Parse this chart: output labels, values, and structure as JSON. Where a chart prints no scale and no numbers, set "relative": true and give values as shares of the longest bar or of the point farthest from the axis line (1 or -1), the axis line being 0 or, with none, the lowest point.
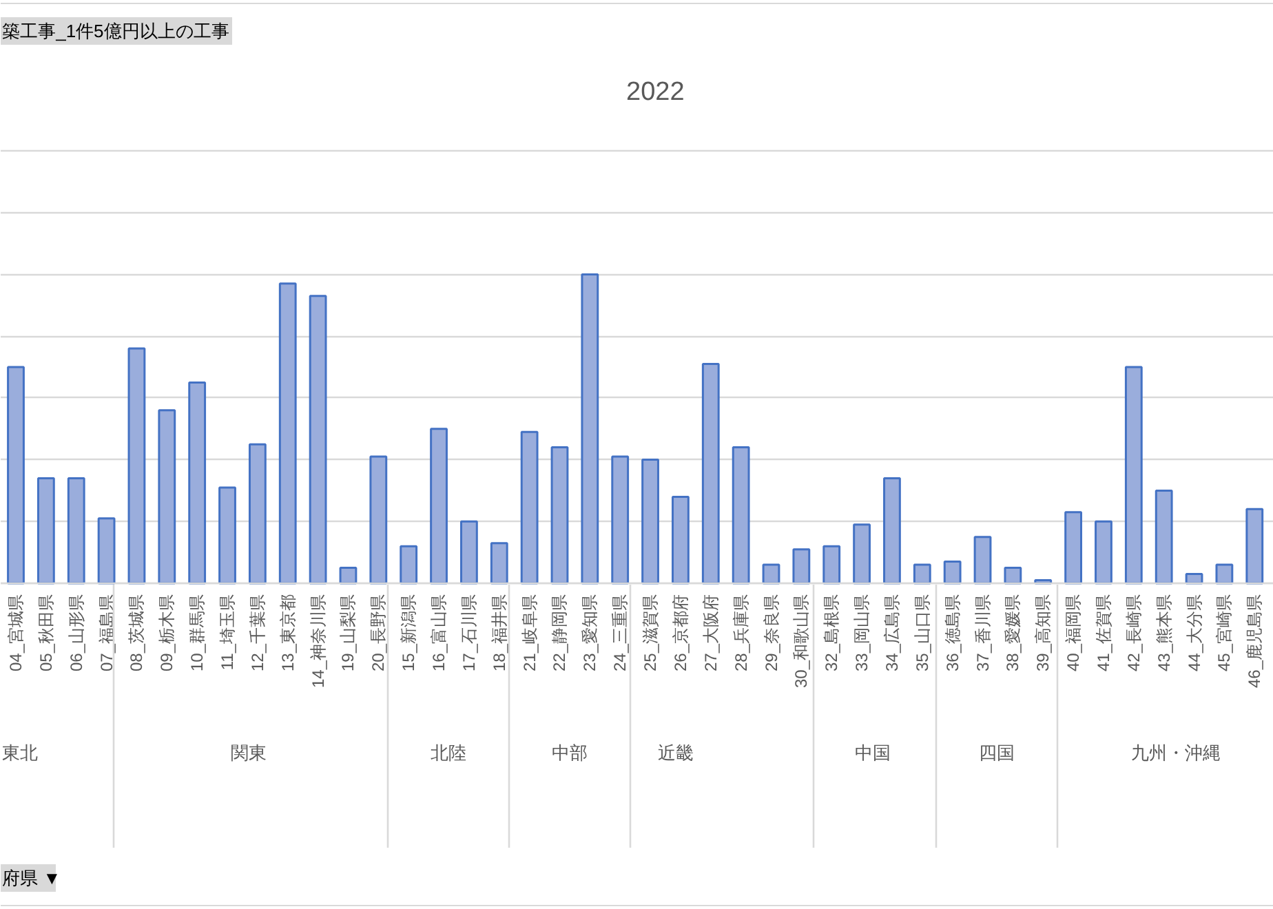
{
  "chart_data": {
    "type": "bar",
    "title": "2022",
    "relative": true,
    "grid": "y",
    "categories": [
      "04_宮城県",
      "05_秋田県",
      "06_山形県",
      "07_福島県",
      "08_茨城県",
      "09_栃木県",
      "10_群馬県",
      "11_埼玉県",
      "12_千葉県",
      "13_東京都",
      "14_神奈川県",
      "19_山梨県",
      "20_長野県",
      "15_新潟県",
      "16_富山県",
      "17_石川県",
      "18_福井県",
      "21_岐阜県",
      "22_静岡県",
      "23_愛知県",
      "24_三重県",
      "25_滋賀県",
      "26_京都府",
      "27_大阪府",
      "28_兵庫県",
      "29_奈良県",
      "30_和歌山県",
      "32_島根県",
      "33_岡山県",
      "34_広島県",
      "35_山口県",
      "36_徳島県",
      "37_香川県",
      "38_愛媛県",
      "39_高知県",
      "40_福岡県",
      "41_佐賀県",
      "42_長崎県",
      "43_熊本県",
      "44_大分県",
      "45_宮崎県",
      "46_鹿児島県"
    ],
    "values": [
      0.7,
      0.34,
      0.34,
      0.21,
      0.76,
      0.56,
      0.65,
      0.31,
      0.45,
      0.97,
      0.93,
      0.05,
      0.41,
      0.12,
      0.5,
      0.2,
      0.13,
      0.49,
      0.44,
      1,
      0.41,
      0.4,
      0.28,
      0.71,
      0.44,
      0.06,
      0.11,
      0.12,
      0.19,
      0.34,
      0.06,
      0.07,
      0.15,
      0.05,
      0.01,
      0.23,
      0.2,
      0.7,
      0.3,
      0.03,
      0.06,
      0.24
    ],
    "color": "#9aaddc",
    "annotations": [
      "東北",
      "関東",
      "北陸",
      "中部",
      "近畿",
      "中国",
      "四国",
      "九州・沖縄",
      "築工事_1件5億円以上の工事",
      "府県 ▼"
    ]
  }
}
